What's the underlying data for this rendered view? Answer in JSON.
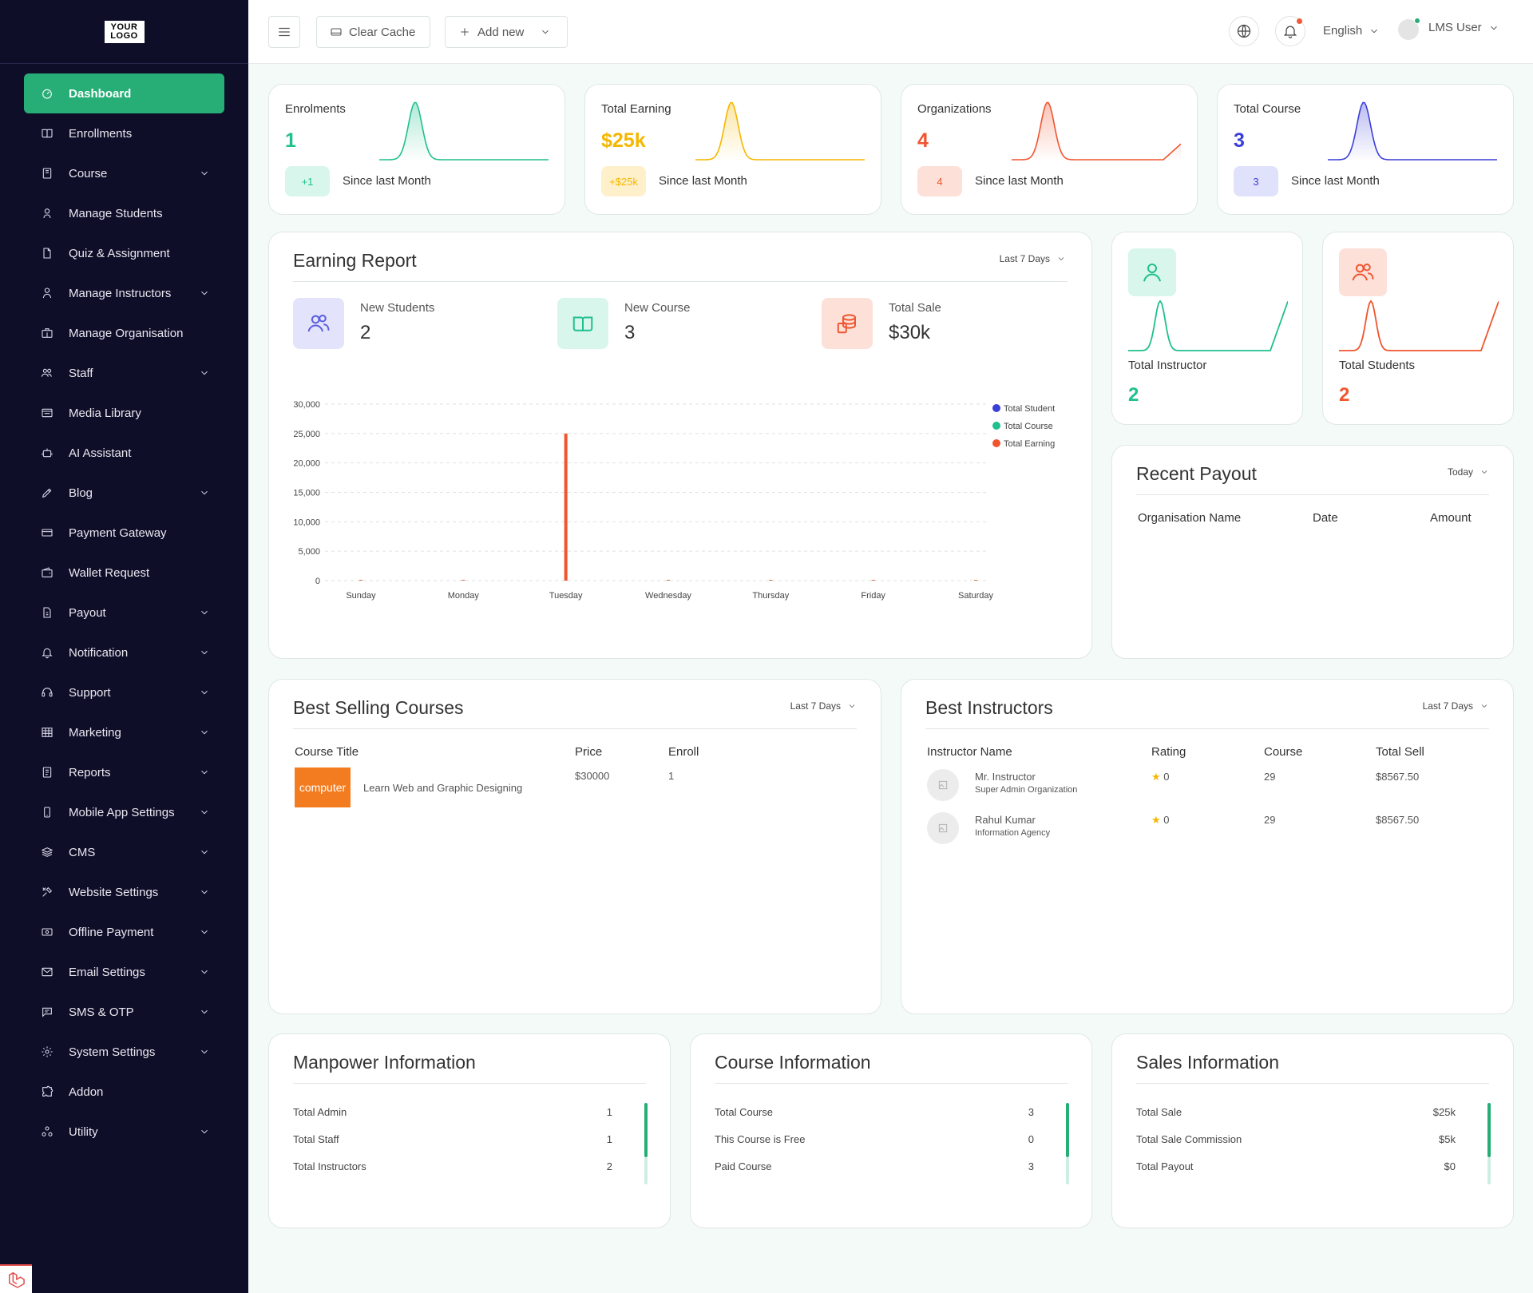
{
  "logo": {
    "line1": "YOUR",
    "line2": "LOGO"
  },
  "sidebar": {
    "items": [
      {
        "label": "Dashboard",
        "icon": "dashboard-icon",
        "active": true,
        "chevron": false
      },
      {
        "label": "Enrollments",
        "icon": "book-icon",
        "chevron": false
      },
      {
        "label": "Course",
        "icon": "course-icon",
        "chevron": true
      },
      {
        "label": "Manage Students",
        "icon": "student-icon",
        "chevron": false
      },
      {
        "label": "Quiz & Assignment",
        "icon": "file-icon",
        "chevron": false
      },
      {
        "label": "Manage Instructors",
        "icon": "instructor-icon",
        "chevron": true
      },
      {
        "label": "Manage Organisation",
        "icon": "organisation-icon",
        "chevron": false
      },
      {
        "label": "Staff",
        "icon": "staff-icon",
        "chevron": true
      },
      {
        "label": "Media Library",
        "icon": "media-icon",
        "chevron": false
      },
      {
        "label": "AI Assistant",
        "icon": "robot-icon",
        "chevron": false
      },
      {
        "label": "Blog",
        "icon": "blog-icon",
        "chevron": true
      },
      {
        "label": "Payment Gateway",
        "icon": "card-icon",
        "chevron": false
      },
      {
        "label": "Wallet Request",
        "icon": "wallet-icon",
        "chevron": false
      },
      {
        "label": "Payout",
        "icon": "payout-icon",
        "chevron": true
      },
      {
        "label": "Notification",
        "icon": "bell-icon",
        "chevron": true
      },
      {
        "label": "Support",
        "icon": "headset-icon",
        "chevron": true
      },
      {
        "label": "Marketing",
        "icon": "grid-icon",
        "chevron": true
      },
      {
        "label": "Reports",
        "icon": "report-icon",
        "chevron": true
      },
      {
        "label": "Mobile App Settings",
        "icon": "mobile-icon",
        "chevron": true
      },
      {
        "label": "CMS",
        "icon": "layers-icon",
        "chevron": true
      },
      {
        "label": "Website Settings",
        "icon": "tools-icon",
        "chevron": true
      },
      {
        "label": "Offline Payment",
        "icon": "cash-icon",
        "chevron": true
      },
      {
        "label": "Email Settings",
        "icon": "mail-icon",
        "chevron": true
      },
      {
        "label": "SMS & OTP",
        "icon": "message-icon",
        "chevron": true
      },
      {
        "label": "System Settings",
        "icon": "gear-icon",
        "chevron": true
      },
      {
        "label": "Addon",
        "icon": "puzzle-icon",
        "chevron": false
      },
      {
        "label": "Utility",
        "icon": "utility-icon",
        "chevron": true
      }
    ]
  },
  "topbar": {
    "clear_cache": "Clear Cache",
    "add_new": "Add new",
    "language": "English",
    "user": "LMS User"
  },
  "stats": [
    {
      "label": "Enrolments",
      "value": "1",
      "pill": "+1",
      "since": "Since last Month",
      "color": "#1fc08e",
      "pill_bg": "#d8f6ec"
    },
    {
      "label": "Total Earning",
      "value": "$25k",
      "pill": "+$25k",
      "since": "Since last Month",
      "color": "#f5b700",
      "pill_bg": "#fff0cc"
    },
    {
      "label": "Organizations",
      "value": "4",
      "pill": "4",
      "since": "Since last Month",
      "color": "#f0552f",
      "pill_bg": "#fde0d8"
    },
    {
      "label": "Total Course",
      "value": "3",
      "pill": "3",
      "since": "Since last Month",
      "color": "#3b3fd8",
      "pill_bg": "#e0e1fb"
    }
  ],
  "earning_report": {
    "title": "Earning Report",
    "range": "Last 7 Days",
    "mini": [
      {
        "label": "New Students",
        "value": "2",
        "icon": "users-icon",
        "color": "#5b5be0",
        "bg": "#e3e4fb"
      },
      {
        "label": "New Course",
        "value": "3",
        "icon": "open-book-icon",
        "color": "#1fc08e",
        "bg": "#d9f6ec"
      },
      {
        "label": "Total Sale",
        "value": "$30k",
        "icon": "coins-icon",
        "color": "#f0552f",
        "bg": "#fde1d9"
      }
    ]
  },
  "chart_data": {
    "type": "bar",
    "categories": [
      "Sunday",
      "Monday",
      "Tuesday",
      "Wednesday",
      "Thursday",
      "Friday",
      "Saturday"
    ],
    "series": [
      {
        "name": "Total Student",
        "values": [
          0,
          0,
          0,
          0,
          0,
          0,
          0
        ],
        "color": "#3b3fd8"
      },
      {
        "name": "Total Course",
        "values": [
          0,
          0,
          0,
          0,
          0,
          0,
          0
        ],
        "color": "#1fc08e"
      },
      {
        "name": "Total Earning",
        "values": [
          0,
          0,
          25000,
          0,
          0,
          0,
          0
        ],
        "color": "#f0552f"
      }
    ],
    "yticks": [
      "30,000",
      "25,000",
      "20,000",
      "15,000",
      "10,000",
      "5,000",
      "0"
    ],
    "ylim": [
      0,
      30000
    ],
    "legend_position": "top-right",
    "grid": true
  },
  "instructor_card": {
    "label": "Total Instructor",
    "value": "2",
    "color": "#1fc08e",
    "bg": "#d9f6ec"
  },
  "student_card": {
    "label": "Total Students",
    "value": "2",
    "color": "#f0552f",
    "bg": "#fde1d9"
  },
  "recent_payout": {
    "title": "Recent Payout",
    "range": "Today",
    "columns": [
      "Organisation Name",
      "Date",
      "Amount"
    ]
  },
  "best_selling": {
    "title": "Best Selling Courses",
    "range": "Last 7 Days",
    "columns": [
      "Course Title",
      "Price",
      "Enroll"
    ],
    "rows": [
      {
        "thumb": "computer",
        "title": "Learn Web and Graphic Designing",
        "price": "$30000",
        "enroll": "1"
      }
    ]
  },
  "best_instructors": {
    "title": "Best Instructors",
    "range": "Last 7 Days",
    "columns": [
      "Instructor Name",
      "Rating",
      "Course",
      "Total Sell"
    ],
    "rows": [
      {
        "name": "Mr. Instructor",
        "org": "Super Admin Organization",
        "rating": "0",
        "course": "29",
        "sell": "$8567.50"
      },
      {
        "name": "Rahul Kumar",
        "org": "Information Agency",
        "rating": "0",
        "course": "29",
        "sell": "$8567.50"
      }
    ]
  },
  "manpower": {
    "title": "Manpower Information",
    "rows": [
      {
        "label": "Total Admin",
        "value": "1"
      },
      {
        "label": "Total Staff",
        "value": "1"
      },
      {
        "label": "Total Instructors",
        "value": "2"
      }
    ]
  },
  "course_info": {
    "title": "Course Information",
    "rows": [
      {
        "label": "Total Course",
        "value": "3"
      },
      {
        "label": "This Course is Free",
        "value": "0"
      },
      {
        "label": "Paid Course",
        "value": "3"
      }
    ]
  },
  "sales_info": {
    "title": "Sales Information",
    "rows": [
      {
        "label": "Total Sale",
        "value": "$25k"
      },
      {
        "label": "Total Sale Commission",
        "value": "$5k"
      },
      {
        "label": "Total Payout",
        "value": "$0"
      }
    ]
  }
}
